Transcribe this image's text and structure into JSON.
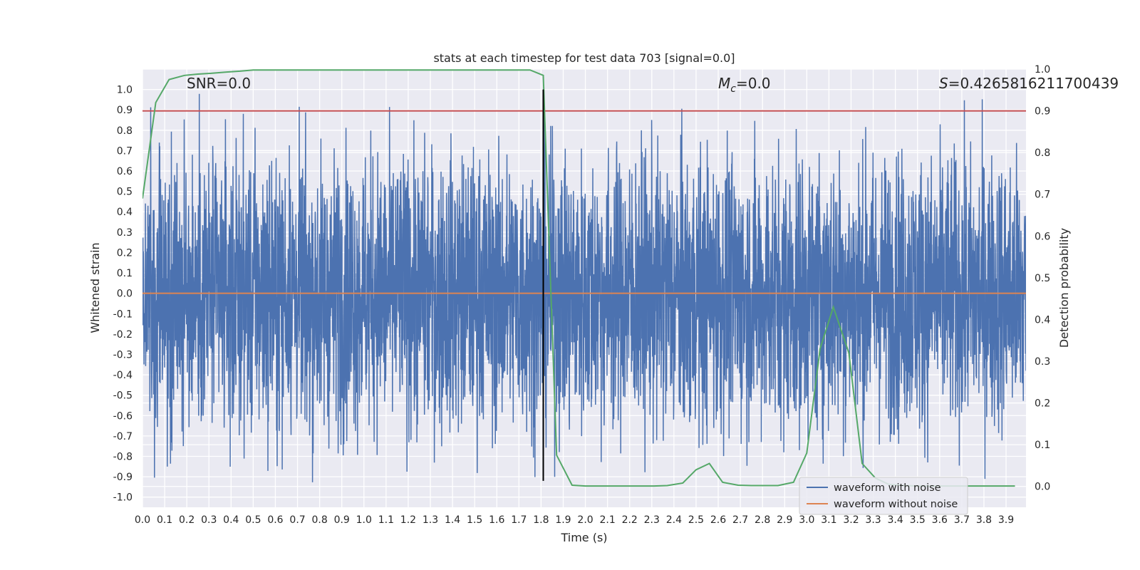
{
  "chart_data": {
    "type": "line",
    "title": "stats at each timestep for test data 703 [signal=0.0]",
    "xlabel": "Time (s)",
    "ylabel": "Whitened strain",
    "y2label": "Detection probability",
    "xlim": [
      0.0,
      3.99
    ],
    "ylim": [
      -1.05,
      1.1
    ],
    "y2lim": [
      -0.05,
      1.0
    ],
    "xticks": [
      "0.0",
      "0.1",
      "0.2",
      "0.3",
      "0.4",
      "0.5",
      "0.6",
      "0.7",
      "0.8",
      "0.9",
      "1.0",
      "1.1",
      "1.2",
      "1.3",
      "1.4",
      "1.5",
      "1.6",
      "1.7",
      "1.8",
      "1.9",
      "2.0",
      "2.1",
      "2.2",
      "2.3",
      "2.4",
      "2.5",
      "2.6",
      "2.7",
      "2.8",
      "2.9",
      "3.0",
      "3.1",
      "3.2",
      "3.3",
      "3.4",
      "3.5",
      "3.6",
      "3.7",
      "3.8",
      "3.9"
    ],
    "yticks": [
      "1.0",
      "0.9",
      "0.8",
      "0.7",
      "0.6",
      "0.5",
      "0.4",
      "0.3",
      "0.2",
      "0.1",
      "0.0",
      "-0.1",
      "-0.2",
      "-0.3",
      "-0.4",
      "-0.5",
      "-0.6",
      "-0.7",
      "-0.8",
      "-0.9",
      "-1.0"
    ],
    "y2ticks": [
      "1.0",
      "0.9",
      "0.8",
      "0.7",
      "0.6",
      "0.5",
      "0.4",
      "0.3",
      "0.2",
      "0.1",
      "0.0"
    ],
    "grid": true,
    "legend_position": "lower-right",
    "series": [
      {
        "name": "waveform with noise",
        "color": "#4c72b0",
        "kind": "noise"
      },
      {
        "name": "waveform without noise",
        "color": "#dd8452",
        "y": 0.0
      },
      {
        "color": "#55a868",
        "axis": "y2",
        "x": [
          0.0,
          0.06,
          0.12,
          0.19,
          0.25,
          0.31,
          0.38,
          0.44,
          0.5,
          0.56,
          0.62,
          0.69,
          0.75,
          0.81,
          0.87,
          0.94,
          1.0,
          1.06,
          1.12,
          1.19,
          1.25,
          1.31,
          1.37,
          1.44,
          1.5,
          1.56,
          1.62,
          1.69,
          1.75,
          1.81,
          1.87,
          1.94,
          2.0,
          2.06,
          2.12,
          2.19,
          2.25,
          2.31,
          2.37,
          2.44,
          2.5,
          2.56,
          2.62,
          2.69,
          2.75,
          2.81,
          2.87,
          2.94,
          3.0,
          3.06,
          3.12,
          3.19,
          3.25,
          3.31,
          3.37,
          3.44,
          3.5,
          3.56,
          3.62,
          3.69,
          3.75,
          3.81,
          3.87,
          3.94
        ],
        "y": [
          0.69,
          0.92,
          0.975,
          0.985,
          0.988,
          0.99,
          0.993,
          0.995,
          0.998,
          0.998,
          0.998,
          0.998,
          0.998,
          0.998,
          0.998,
          0.998,
          0.998,
          0.998,
          0.998,
          0.998,
          0.998,
          0.998,
          0.998,
          0.998,
          0.998,
          0.998,
          0.998,
          0.998,
          0.998,
          0.985,
          0.075,
          0.003,
          0.001,
          0.001,
          0.001,
          0.001,
          0.001,
          0.001,
          0.002,
          0.008,
          0.04,
          0.055,
          0.01,
          0.003,
          0.002,
          0.002,
          0.002,
          0.01,
          0.08,
          0.33,
          0.43,
          0.32,
          0.055,
          0.02,
          0.005,
          0.002,
          0.001,
          0.001,
          0.001,
          0.001,
          0.001,
          0.001,
          0.001,
          0.001
        ]
      },
      {
        "color": "#c44e52",
        "axis": "y2",
        "y": 0.9
      },
      {
        "color": "#000000",
        "x": 1.81
      }
    ],
    "annotations": [
      {
        "text": "SNR=0.0"
      },
      {
        "text_main": "M",
        "text_sub": "c",
        "text_rest": "=0.0"
      },
      {
        "text_main": "S",
        "text_rest": "=0.4265816211700439"
      }
    ]
  }
}
